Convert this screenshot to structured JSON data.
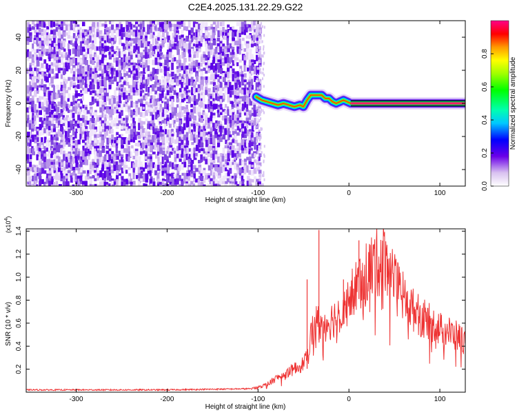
{
  "title": "C2E4.2025.131.22.29.G22",
  "chart_data": [
    {
      "type": "heatmap",
      "xlabel": "Height of straight line (km)",
      "ylabel": "Frequency (Hz)",
      "xlim": [
        -355,
        128
      ],
      "ylim": [
        -50,
        50
      ],
      "x_ticks": [
        "-300",
        "-200",
        "-100",
        "0",
        "100"
      ],
      "y_ticks": [
        "-40",
        "-20",
        "0",
        "20",
        "40"
      ],
      "grid": false,
      "colorbar": {
        "label": "Normalized spectral amplitude",
        "range": [
          0,
          1
        ],
        "ticks": [
          "0.0",
          "0.2",
          "0.4",
          "0.6",
          "0.8"
        ]
      },
      "noise_region_x": [
        -355,
        -98
      ],
      "signal_trace": {
        "x": [
          -102,
          -96,
          -90,
          -84,
          -78,
          -72,
          -66,
          -60,
          -54,
          -50,
          -46,
          -42,
          -38,
          -34,
          -30,
          -26,
          -22,
          -18,
          -14,
          -10,
          -6,
          -2,
          2,
          128
        ],
        "y": [
          4,
          2,
          1,
          0,
          -1,
          0,
          -1,
          -2,
          -1,
          -2,
          2,
          5,
          5,
          5,
          5,
          3,
          3,
          1,
          0,
          1,
          2,
          1,
          0,
          0
        ]
      },
      "constant_line": {
        "x": [
          2,
          128
        ],
        "y": 0,
        "amplitude": 0.95
      }
    },
    {
      "type": "line",
      "xlabel": "Height of straight line (km)",
      "ylabel": "SNR (10 * v/v)",
      "y_multiplier": "(x10",
      "y_exponent": "4",
      "y_multiplier_close": ")",
      "xlim": [
        -355,
        128
      ],
      "ylim": [
        0,
        1.42
      ],
      "x_ticks": [
        "-300",
        "-200",
        "-100",
        "0",
        "100"
      ],
      "y_ticks": [
        "0.2",
        "0.4",
        "0.6",
        "0.8",
        "1.0",
        "1.2",
        "1.4"
      ],
      "grid": false,
      "series": [
        {
          "color": "#ee3333",
          "x": [
            -355,
            -200,
            -110,
            -100,
            -90,
            -80,
            -70,
            -60,
            -50,
            -45,
            -40,
            -35,
            -30,
            -25,
            -20,
            -10,
            0,
            10,
            20,
            30,
            40,
            45,
            50,
            60,
            70,
            80,
            90,
            100,
            110,
            120,
            128
          ],
          "y": [
            0.02,
            0.02,
            0.03,
            0.04,
            0.07,
            0.12,
            0.16,
            0.2,
            0.25,
            0.38,
            0.55,
            0.62,
            0.58,
            0.6,
            0.62,
            0.7,
            0.8,
            0.95,
            1.05,
            1.12,
            1.18,
            1.1,
            0.95,
            0.82,
            0.72,
            0.65,
            0.6,
            0.55,
            0.52,
            0.48,
            0.45
          ]
        }
      ],
      "spikes": [
        {
          "x": -33,
          "y": 1.41
        },
        {
          "x": -46,
          "y": 0.98
        },
        {
          "x": 11,
          "y": 1.32
        },
        {
          "x": 5,
          "y": 0.9
        },
        {
          "x": -6,
          "y": 0.98
        },
        {
          "x": 42,
          "y": 1.21
        }
      ]
    }
  ]
}
